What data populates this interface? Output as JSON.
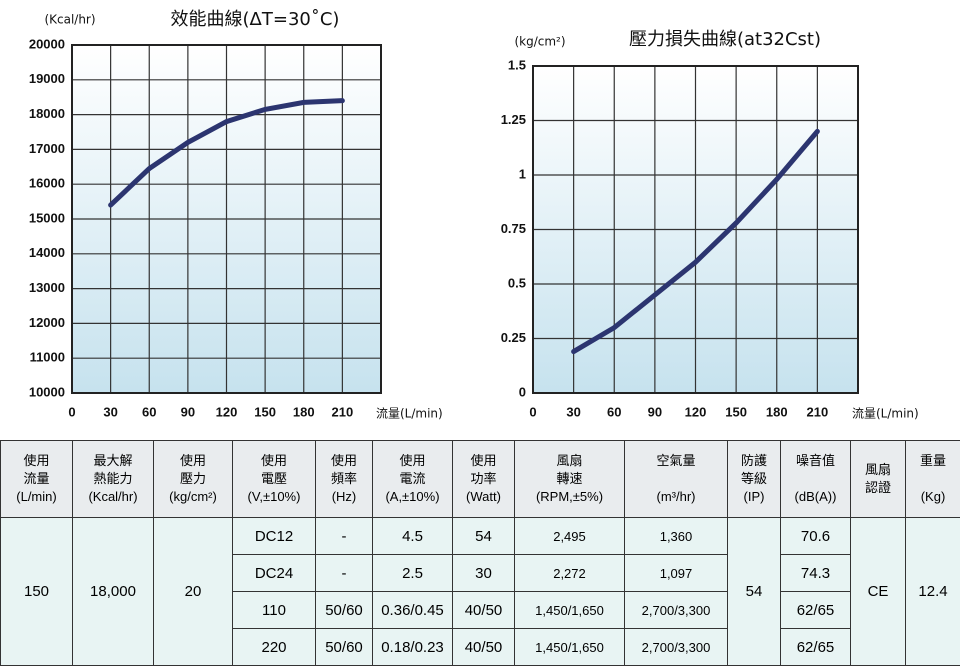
{
  "chart_data": [
    {
      "type": "line",
      "title": "效能曲線(ΔT=30˚C)",
      "y_label": "(Kcal/hr)",
      "x_label": "流量(L/min)",
      "x": [
        30,
        60,
        90,
        120,
        150,
        180,
        210
      ],
      "series": [
        {
          "color": "#2c3570",
          "values": [
            15400,
            16450,
            17200,
            17800,
            18150,
            18350,
            18400
          ]
        }
      ],
      "xlim": [
        0,
        240
      ],
      "xticks": [
        0,
        30,
        60,
        90,
        120,
        150,
        180,
        210
      ],
      "ylim": [
        10000,
        20000
      ],
      "yticks": [
        10000,
        11000,
        12000,
        13000,
        14000,
        15000,
        16000,
        17000,
        18000,
        19000,
        20000
      ],
      "grid": true
    },
    {
      "type": "line",
      "title": "壓力損失曲線(at32Cst)",
      "y_label": "(kg/cm²)",
      "x_label": "流量(L/min)",
      "x": [
        30,
        60,
        90,
        120,
        150,
        180,
        210
      ],
      "series": [
        {
          "color": "#2c3570",
          "values": [
            0.19,
            0.3,
            0.45,
            0.6,
            0.78,
            0.98,
            1.2
          ]
        }
      ],
      "xlim": [
        0,
        240
      ],
      "xticks": [
        0,
        30,
        60,
        90,
        120,
        150,
        180,
        210
      ],
      "ylim": [
        0,
        1.5
      ],
      "yticks": [
        0,
        0.25,
        0.5,
        0.75,
        1,
        1.25,
        1.5
      ],
      "grid": true
    }
  ],
  "table": {
    "headers": [
      "使用\n流量\n(L/min)",
      "最大解\n熱能力\n(Kcal/hr)",
      "使用\n壓力\n(kg/cm²)",
      "使用\n電壓\n(V,±10%)",
      "使用\n頻率\n(Hz)",
      "使用\n電流\n(A,±10%)",
      "使用\n功率\n(Watt)",
      "風扇\n轉速\n(RPM,±5%)",
      "空氣量\n\n(m³/hr)",
      "防護\n等級\n(IP)",
      "噪音值\n\n(dB(A))",
      "風扇\n認證",
      "重量\n\n(Kg)"
    ],
    "spanned": [
      "150",
      "18,000",
      "20",
      "54",
      "CE",
      "12.4"
    ],
    "rows": [
      [
        "DC12",
        "-",
        "4.5",
        "54",
        "2,495",
        "1,360",
        "70.6"
      ],
      [
        "DC24",
        "-",
        "2.5",
        "30",
        "2,272",
        "1,097",
        "74.3"
      ],
      [
        "110",
        "50/60",
        "0.36/0.45",
        "40/50",
        "1,450/1,650",
        "2,700/3,300",
        "62/65"
      ],
      [
        "220",
        "50/60",
        "0.18/0.23",
        "40/50",
        "1,450/1,650",
        "2,700/3,300",
        "62/65"
      ]
    ]
  }
}
